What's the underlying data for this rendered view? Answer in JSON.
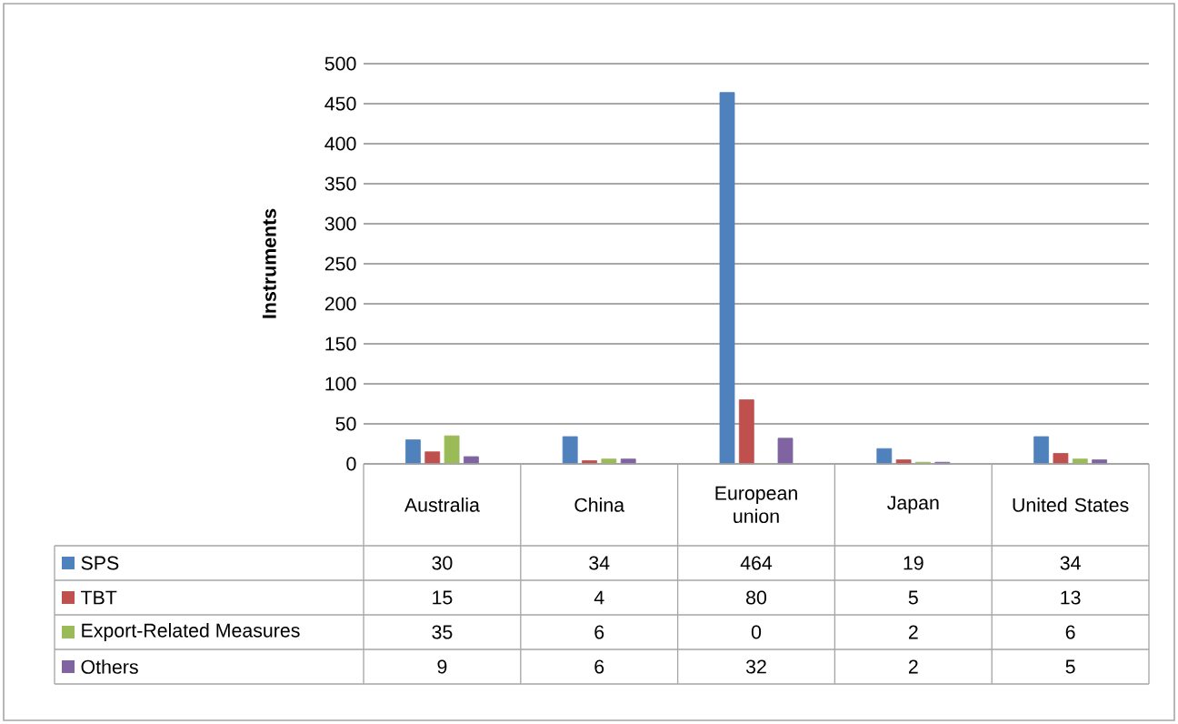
{
  "chart_data": {
    "type": "bar",
    "ylabel": "Instruments",
    "categories": [
      "Australia",
      "China",
      "European union",
      "Japan",
      "United States"
    ],
    "series": [
      {
        "name": "SPS",
        "color": "#4f81bd",
        "values": [
          30,
          34,
          464,
          19,
          34
        ]
      },
      {
        "name": "TBT",
        "color": "#c0504d",
        "values": [
          15,
          4,
          80,
          5,
          13
        ]
      },
      {
        "name": "Export-Related Measures",
        "color": "#9bbb59",
        "values": [
          35,
          6,
          0,
          2,
          6
        ]
      },
      {
        "name": "Others",
        "color": "#8064a2",
        "values": [
          9,
          6,
          32,
          2,
          5
        ]
      }
    ],
    "ylim": [
      0,
      500
    ],
    "yticks": [
      0,
      50,
      100,
      150,
      200,
      250,
      300,
      350,
      400,
      450,
      500
    ],
    "grid": "y",
    "data_labels": true,
    "legend": "bottom left"
  }
}
